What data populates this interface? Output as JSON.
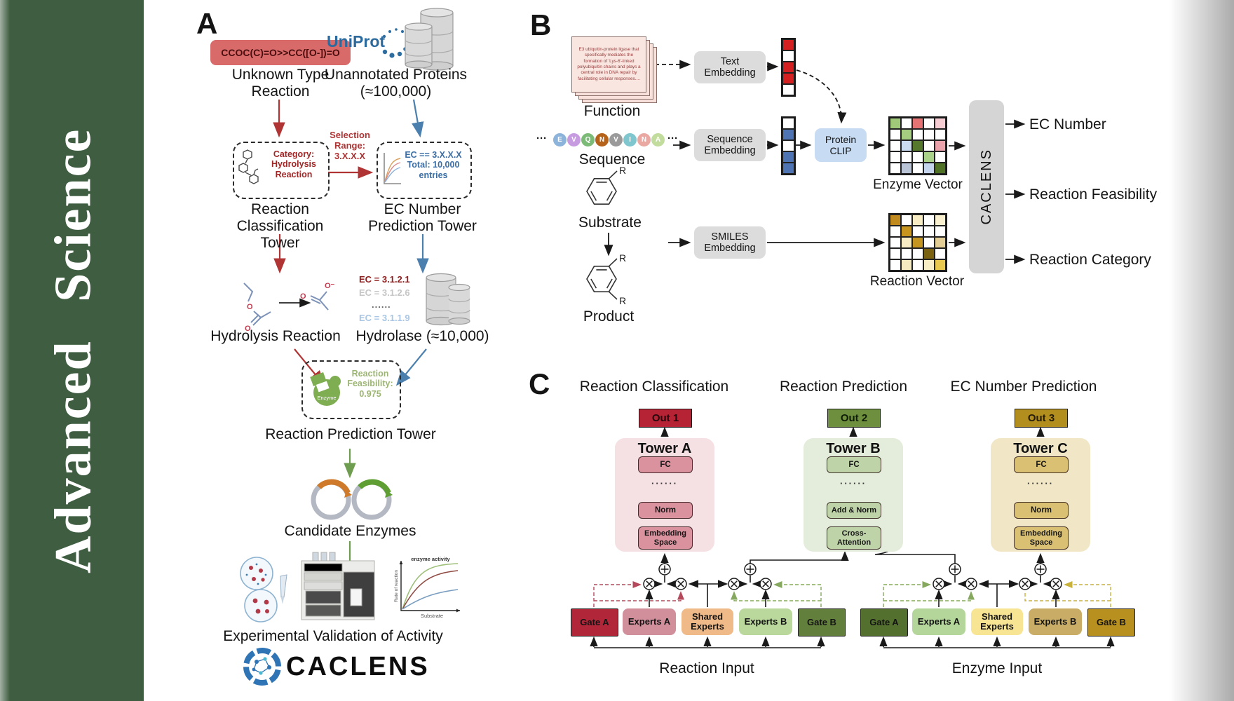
{
  "journal": {
    "name": "Advanced Science"
  },
  "panelA": {
    "label": "A",
    "smiles": "CCOC(C)=O>>CC([O-])=O",
    "unknown_reaction": "Unknown Type Reaction",
    "uniprot": "UniProt",
    "unannotated": "Unannotated Proteins (≈100,000)",
    "category_box": "Category: Hydrolysis Reaction",
    "selection_range": "Selection Range: 3.X.X.X",
    "ec_selection": "EC == 3.X.X.X Total: 10,000 entries",
    "classification_tower": "Reaction Classification Tower",
    "ec_tower": "EC Number Prediction Tower",
    "ec_list": [
      "EC = 3.1.2.1",
      "EC = 3.1.2.6",
      "......",
      "EC = 3.1.1.9"
    ],
    "hydrolysis_reaction": "Hydrolysis Reaction",
    "hydrolase": "Hydrolase (≈10,000)",
    "enzyme_badge": "Enzyme",
    "feasibility": "Reaction Feasibility: 0.975",
    "prediction_tower": "Reaction Prediction Tower",
    "candidate_enzymes": "Candidate Enzymes",
    "activity_plot": {
      "title": "enzyme activity",
      "ylabel": "Rate of reaction",
      "xlabel": "Substrate"
    },
    "validation": "Experimental Validation of Activity",
    "logo_text": "CACLENS",
    "mol": {
      "o1": "O",
      "o2": "O",
      "o_minus": "O⁻",
      "o3": "O"
    }
  },
  "panelB": {
    "label": "B",
    "function_card_text": "E3 ubiquitin-protein ligase that specifically mediates the formation of 'Lys-6'-linked polyubiquitin chains and plays a central role in DNA repair by facilitating cellular responses....",
    "function_label": "Function",
    "sequence_label": "Sequence",
    "ellipsis": "···",
    "residues": [
      {
        "letter": "E",
        "color": "#8cb3d9"
      },
      {
        "letter": "V",
        "color": "#c79be0"
      },
      {
        "letter": "Q",
        "color": "#7cba77"
      },
      {
        "letter": "N",
        "color": "#b5621b"
      },
      {
        "letter": "V",
        "color": "#9a9a9a"
      },
      {
        "letter": "I",
        "color": "#7fc6ce"
      },
      {
        "letter": "N",
        "color": "#e9a9a2"
      },
      {
        "letter": "A",
        "color": "#c2dc9e"
      }
    ],
    "substrate_label": "Substrate",
    "product_label": "Product",
    "r_label": "R",
    "text_embedding": "Text Embedding",
    "sequence_embedding": "Sequence Embedding",
    "smiles_embedding": "SMILES Embedding",
    "protein_clip": "Protein CLIP",
    "caclens": "CACLENS",
    "enzyme_vector_label": "Enzyme Vector",
    "reaction_vector_label": "Reaction Vector",
    "outputs": [
      "EC Number",
      "Reaction Feasibility",
      "Reaction Category"
    ],
    "text_vector": [
      "#d42020",
      "#ffffff",
      "#d42020",
      "#d42020",
      "#ffffff"
    ],
    "sequence_vector": [
      "#ffffff",
      "#4f74b3",
      "#ffffff",
      "#4f74b3",
      "#4f74b3"
    ],
    "enzyme_matrix": [
      "#9fc879",
      "#ffffff",
      "#e57373",
      "#ffffff",
      "#f6cdd3",
      "#ffffff",
      "#a5cd7f",
      "#ffffff",
      "#ffffff",
      "#ffffff",
      "#ffffff",
      "#ccdcf0",
      "#55782c",
      "#ffffff",
      "#eba3ab",
      "#ffffff",
      "#ffffff",
      "#ffffff",
      "#abd289",
      "#ffffff",
      "#ffffff",
      "#b9c5d6",
      "#ffffff",
      "#c3d4ec",
      "#4f7226"
    ],
    "reaction_matrix": [
      "#c08a1e",
      "#ffffff",
      "#f7ecc4",
      "#ffffff",
      "#f9f0cf",
      "#ffffff",
      "#c8951f",
      "#ffffff",
      "#ffffff",
      "#ffffff",
      "#ffffff",
      "#f7ecc4",
      "#c49520",
      "#ffffff",
      "#e3cf96",
      "#ffffff",
      "#ffffff",
      "#ffffff",
      "#7a6210",
      "#ffffff",
      "#ffffff",
      "#f5eabf",
      "#ffffff",
      "#f7eec6",
      "#e8c84f"
    ]
  },
  "panelC": {
    "label": "C",
    "headers": [
      "Reaction Classification",
      "Reaction Prediction",
      "EC Number Prediction"
    ],
    "outs": [
      "Out 1",
      "Out 2",
      "Out 3"
    ],
    "towers": [
      {
        "title": "Tower A",
        "fc": "FC",
        "dots": "······",
        "mid": "Norm",
        "base": "Embedding Space"
      },
      {
        "title": "Tower B",
        "fc": "FC",
        "dots": "······",
        "mid": "Add & Norm",
        "base": "Cross-Attention"
      },
      {
        "title": "Tower C",
        "fc": "FC",
        "dots": "······",
        "mid": "Norm",
        "base": "Embedding Space"
      }
    ],
    "moe_left": {
      "gate_a": "Gate A",
      "experts_a": "Experts A",
      "shared": "Shared Experts",
      "experts_b": "Experts B",
      "gate_b": "Gate B",
      "input": "Reaction Input"
    },
    "moe_right": {
      "gate_a": "Gate A",
      "experts_a": "Experts A",
      "shared": "Shared Experts",
      "experts_b": "Experts B",
      "gate_b": "Gate B",
      "input": "Enzyme Input"
    }
  }
}
